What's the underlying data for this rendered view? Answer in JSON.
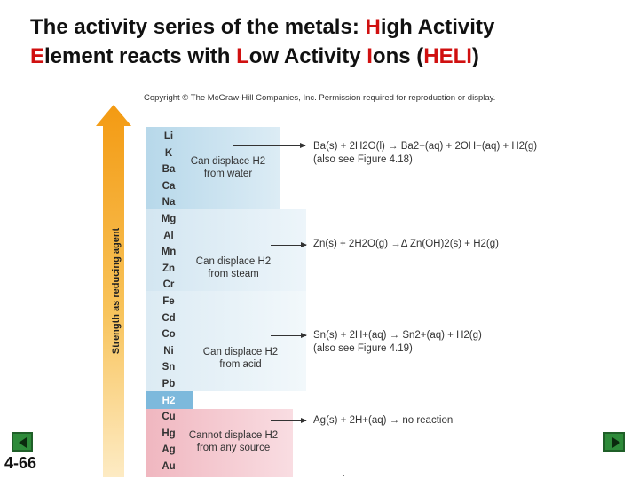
{
  "title": {
    "part1": "The activity series of the metals: ",
    "h": "H",
    "part2": "igh Activity ",
    "e": "E",
    "part3": "lement reacts with ",
    "l": "L",
    "part4": "ow Activity ",
    "i": "I",
    "part5": "ons (",
    "acronym": "HELI",
    "part6": ")"
  },
  "copyright": "Copyright © The McGraw-Hill Companies, Inc. Permission required for reproduction or display.",
  "axis_label": "Strength as reducing agent",
  "elements": [
    "Li",
    "K",
    "Ba",
    "Ca",
    "Na",
    "Mg",
    "Al",
    "Mn",
    "Zn",
    "Cr",
    "Fe",
    "Cd",
    "Co",
    "Ni",
    "Sn",
    "Pb",
    "H2",
    "Cu",
    "Hg",
    "Ag",
    "Au"
  ],
  "zones": {
    "water": {
      "line1": "Can displace H2",
      "line2": "from water"
    },
    "steam": {
      "line1": "Can displace H2",
      "line2": "from steam"
    },
    "acid": {
      "line1": "Can displace H2",
      "line2": "from acid"
    },
    "none": {
      "line1": "Cannot displace H2",
      "line2": "from any source"
    }
  },
  "equations": {
    "water": "Ba(s) + 2H2O(l) → Ba2+(aq) + 2OH−(aq) + H2(g)",
    "water_note": "(also see Figure 4.18)",
    "steam": "Zn(s) + 2H2O(g) →Δ Zn(OH)2(s) + H2(g)",
    "acid": "Sn(s) + 2H+(aq) → Sn2+(aq) + H2(g)",
    "acid_note": "(also see Figure 4.19)",
    "none": "Ag(s) + 2H+(aq) → no reaction"
  },
  "slide_number": "4-66",
  "colors": {
    "title_highlight": "#d01010",
    "arrow_orange": "#f6a21a",
    "zone_water": "#b7d8ea",
    "zone_h2": "#7db9dc",
    "zone_none": "#f0b7c0",
    "nav_green": "#2e8b3a"
  },
  "icons": {
    "prev": "previous-slide-icon",
    "next": "next-slide-icon",
    "strength_arrow": "up-arrow-icon"
  }
}
